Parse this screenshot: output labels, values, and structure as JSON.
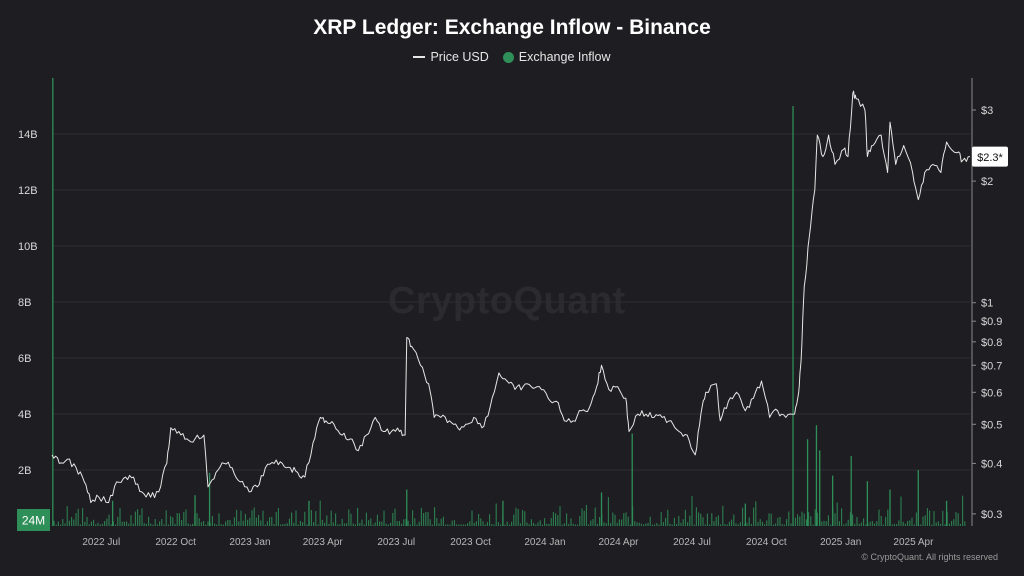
{
  "chart_data": {
    "type": "line",
    "title": "XRP Ledger: Exchange Inflow - Binance",
    "legend": [
      {
        "name": "Price USD",
        "color": "#e6e6e6",
        "marker": "line"
      },
      {
        "name": "Exchange Inflow",
        "color": "#2f8f58",
        "marker": "dot"
      }
    ],
    "left_axis": {
      "ticks": [
        {
          "value": 2000000000,
          "label": "2B"
        },
        {
          "value": 4000000000,
          "label": "4B"
        },
        {
          "value": 6000000000,
          "label": "6B"
        },
        {
          "value": 8000000000,
          "label": "8B"
        },
        {
          "value": 10000000000,
          "label": "10B"
        },
        {
          "value": 12000000000,
          "label": "12B"
        },
        {
          "value": 14000000000,
          "label": "14B"
        }
      ],
      "ylim": [
        0,
        16000000000
      ],
      "highlight_label": "24M"
    },
    "right_axis": {
      "scale": "log",
      "ticks": [
        {
          "value": 0.3,
          "label": "$0.3"
        },
        {
          "value": 0.4,
          "label": "$0.4"
        },
        {
          "value": 0.5,
          "label": "$0.5"
        },
        {
          "value": 0.6,
          "label": "$0.6"
        },
        {
          "value": 0.7,
          "label": "$0.7"
        },
        {
          "value": 0.8,
          "label": "$0.8"
        },
        {
          "value": 0.9,
          "label": "$0.9"
        },
        {
          "value": 1,
          "label": "$1"
        },
        {
          "value": 2,
          "label": "$2"
        },
        {
          "value": 3,
          "label": "$3"
        }
      ],
      "ylim": [
        0.28,
        3.6
      ],
      "current_label": "$2.3*",
      "current_value": 2.3
    },
    "x_axis": {
      "range": [
        "2022-05-01",
        "2025-06-10"
      ],
      "ticks": [
        {
          "date": "2022-07-01",
          "label": "2022 Jul"
        },
        {
          "date": "2022-10-01",
          "label": "2022 Oct"
        },
        {
          "date": "2023-01-01",
          "label": "2023 Jan"
        },
        {
          "date": "2023-04-01",
          "label": "2023 Apr"
        },
        {
          "date": "2023-07-01",
          "label": "2023 Jul"
        },
        {
          "date": "2023-10-01",
          "label": "2023 Oct"
        },
        {
          "date": "2024-01-01",
          "label": "2024 Jan"
        },
        {
          "date": "2024-04-01",
          "label": "2024 Apr"
        },
        {
          "date": "2024-07-01",
          "label": "2024 Jul"
        },
        {
          "date": "2024-10-01",
          "label": "2024 Oct"
        },
        {
          "date": "2025-01-01",
          "label": "2025 Jan"
        },
        {
          "date": "2025-04-01",
          "label": "2025 Apr"
        }
      ]
    },
    "price_series": {
      "name": "Price USD",
      "color": "#e6e6e6",
      "points": [
        [
          "2022-05-01",
          0.42
        ],
        [
          "2022-05-10",
          0.4
        ],
        [
          "2022-05-20",
          0.41
        ],
        [
          "2022-05-31",
          0.39
        ],
        [
          "2022-06-10",
          0.36
        ],
        [
          "2022-06-18",
          0.32
        ],
        [
          "2022-06-28",
          0.33
        ],
        [
          "2022-07-10",
          0.32
        ],
        [
          "2022-07-20",
          0.36
        ],
        [
          "2022-07-31",
          0.37
        ],
        [
          "2022-08-10",
          0.37
        ],
        [
          "2022-08-20",
          0.34
        ],
        [
          "2022-08-31",
          0.33
        ],
        [
          "2022-09-10",
          0.34
        ],
        [
          "2022-09-20",
          0.4
        ],
        [
          "2022-09-25",
          0.49
        ],
        [
          "2022-10-05",
          0.48
        ],
        [
          "2022-10-15",
          0.46
        ],
        [
          "2022-10-25",
          0.46
        ],
        [
          "2022-11-05",
          0.47
        ],
        [
          "2022-11-10",
          0.35
        ],
        [
          "2022-11-20",
          0.38
        ],
        [
          "2022-11-30",
          0.4
        ],
        [
          "2022-12-10",
          0.39
        ],
        [
          "2022-12-20",
          0.36
        ],
        [
          "2022-12-31",
          0.34
        ],
        [
          "2023-01-10",
          0.35
        ],
        [
          "2023-01-20",
          0.39
        ],
        [
          "2023-01-31",
          0.4
        ],
        [
          "2023-02-10",
          0.4
        ],
        [
          "2023-02-20",
          0.39
        ],
        [
          "2023-03-01",
          0.38
        ],
        [
          "2023-03-10",
          0.37
        ],
        [
          "2023-03-20",
          0.45
        ],
        [
          "2023-03-29",
          0.52
        ],
        [
          "2023-04-05",
          0.51
        ],
        [
          "2023-04-15",
          0.5
        ],
        [
          "2023-04-25",
          0.47
        ],
        [
          "2023-05-05",
          0.46
        ],
        [
          "2023-05-15",
          0.43
        ],
        [
          "2023-05-25",
          0.47
        ],
        [
          "2023-06-05",
          0.52
        ],
        [
          "2023-06-15",
          0.48
        ],
        [
          "2023-06-25",
          0.48
        ],
        [
          "2023-07-05",
          0.48
        ],
        [
          "2023-07-12",
          0.47
        ],
        [
          "2023-07-14",
          0.82
        ],
        [
          "2023-07-20",
          0.78
        ],
        [
          "2023-07-31",
          0.7
        ],
        [
          "2023-08-10",
          0.63
        ],
        [
          "2023-08-17",
          0.52
        ],
        [
          "2023-08-25",
          0.52
        ],
        [
          "2023-09-05",
          0.51
        ],
        [
          "2023-09-15",
          0.49
        ],
        [
          "2023-09-25",
          0.5
        ],
        [
          "2023-10-05",
          0.52
        ],
        [
          "2023-10-15",
          0.49
        ],
        [
          "2023-10-25",
          0.55
        ],
        [
          "2023-11-05",
          0.67
        ],
        [
          "2023-11-15",
          0.64
        ],
        [
          "2023-11-25",
          0.61
        ],
        [
          "2023-12-05",
          0.62
        ],
        [
          "2023-12-15",
          0.62
        ],
        [
          "2023-12-25",
          0.62
        ],
        [
          "2024-01-05",
          0.58
        ],
        [
          "2024-01-15",
          0.57
        ],
        [
          "2024-01-25",
          0.51
        ],
        [
          "2024-02-05",
          0.51
        ],
        [
          "2024-02-15",
          0.54
        ],
        [
          "2024-02-25",
          0.55
        ],
        [
          "2024-03-05",
          0.62
        ],
        [
          "2024-03-11",
          0.7
        ],
        [
          "2024-03-20",
          0.61
        ],
        [
          "2024-03-31",
          0.62
        ],
        [
          "2024-04-10",
          0.58
        ],
        [
          "2024-04-14",
          0.48
        ],
        [
          "2024-04-25",
          0.53
        ],
        [
          "2024-05-05",
          0.53
        ],
        [
          "2024-05-15",
          0.52
        ],
        [
          "2024-05-25",
          0.52
        ],
        [
          "2024-06-05",
          0.51
        ],
        [
          "2024-06-15",
          0.48
        ],
        [
          "2024-06-25",
          0.47
        ],
        [
          "2024-07-05",
          0.42
        ],
        [
          "2024-07-12",
          0.53
        ],
        [
          "2024-07-18",
          0.6
        ],
        [
          "2024-07-31",
          0.63
        ],
        [
          "2024-08-05",
          0.51
        ],
        [
          "2024-08-15",
          0.57
        ],
        [
          "2024-08-25",
          0.6
        ],
        [
          "2024-09-05",
          0.54
        ],
        [
          "2024-09-15",
          0.58
        ],
        [
          "2024-09-25",
          0.64
        ],
        [
          "2024-10-05",
          0.52
        ],
        [
          "2024-10-15",
          0.54
        ],
        [
          "2024-10-25",
          0.52
        ],
        [
          "2024-11-05",
          0.53
        ],
        [
          "2024-11-10",
          0.6
        ],
        [
          "2024-11-13",
          0.72
        ],
        [
          "2024-11-17",
          1.1
        ],
        [
          "2024-11-23",
          1.45
        ],
        [
          "2024-11-30",
          1.9
        ],
        [
          "2024-12-03",
          2.6
        ],
        [
          "2024-12-10",
          2.3
        ],
        [
          "2024-12-17",
          2.6
        ],
        [
          "2024-12-25",
          2.2
        ],
        [
          "2025-01-05",
          2.4
        ],
        [
          "2025-01-10",
          2.3
        ],
        [
          "2025-01-16",
          3.3
        ],
        [
          "2025-01-20",
          3.2
        ],
        [
          "2025-01-31",
          3.0
        ],
        [
          "2025-02-03",
          2.3
        ],
        [
          "2025-02-10",
          2.45
        ],
        [
          "2025-02-20",
          2.6
        ],
        [
          "2025-02-28",
          2.1
        ],
        [
          "2025-03-03",
          2.8
        ],
        [
          "2025-03-10",
          2.2
        ],
        [
          "2025-03-20",
          2.45
        ],
        [
          "2025-03-31",
          2.1
        ],
        [
          "2025-04-07",
          1.8
        ],
        [
          "2025-04-15",
          2.1
        ],
        [
          "2025-04-25",
          2.2
        ],
        [
          "2025-05-05",
          2.1
        ],
        [
          "2025-05-12",
          2.5
        ],
        [
          "2025-05-25",
          2.35
        ],
        [
          "2025-06-01",
          2.25
        ],
        [
          "2025-06-10",
          2.3
        ]
      ]
    },
    "inflow_series": {
      "name": "Exchange Inflow",
      "color": "#2f8f58",
      "spikes": [
        [
          "2022-05-02",
          16000000000
        ],
        [
          "2022-07-15",
          900000000
        ],
        [
          "2022-10-25",
          1100000000
        ],
        [
          "2022-11-12",
          1900000000
        ],
        [
          "2023-03-15",
          900000000
        ],
        [
          "2023-07-14",
          1300000000
        ],
        [
          "2023-11-10",
          900000000
        ],
        [
          "2024-03-11",
          1200000000
        ],
        [
          "2024-04-18",
          3300000000
        ],
        [
          "2024-09-05",
          800000000
        ],
        [
          "2024-11-03",
          15000000000
        ],
        [
          "2024-11-21",
          3100000000
        ],
        [
          "2024-12-02",
          3600000000
        ],
        [
          "2024-12-06",
          2700000000
        ],
        [
          "2024-12-22",
          1800000000
        ],
        [
          "2025-01-14",
          2500000000
        ],
        [
          "2025-02-03",
          1600000000
        ],
        [
          "2025-03-03",
          1300000000
        ],
        [
          "2025-04-07",
          2000000000
        ],
        [
          "2025-05-12",
          900000000
        ]
      ],
      "baseline_range": [
        50000000,
        700000000
      ]
    },
    "watermark": "CryptoQuant"
  },
  "footer": {
    "credit": "© CryptoQuant. All rights reserved"
  }
}
